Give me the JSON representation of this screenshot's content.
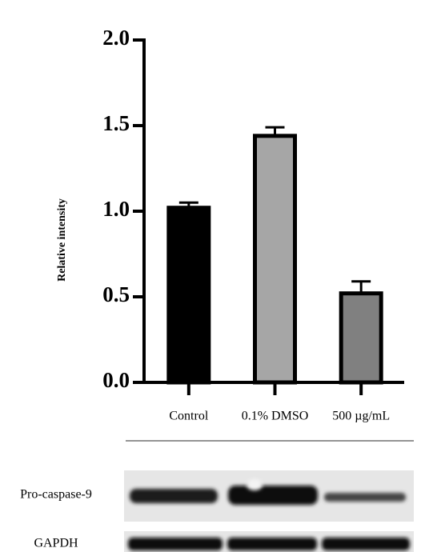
{
  "chart_data": {
    "type": "bar",
    "y_label": "Relative intensity",
    "categories": [
      "Control",
      "0.1% DMSO",
      "500 µg/mL"
    ],
    "values": [
      1.02,
      1.44,
      0.52
    ],
    "errors": [
      0.03,
      0.05,
      0.07
    ],
    "colors": [
      "#000000",
      "#a6a6a6",
      "#808080"
    ],
    "ylim": [
      0,
      2
    ],
    "yticks": [
      {
        "value": 0,
        "label": "0.0"
      },
      0.5,
      {
        "value": 1,
        "label": "1.0"
      },
      1.5,
      {
        "value": 2,
        "label": "2.0"
      }
    ]
  },
  "blot": {
    "labels": [
      "Pro-caspase-9",
      "GAPDH"
    ]
  }
}
